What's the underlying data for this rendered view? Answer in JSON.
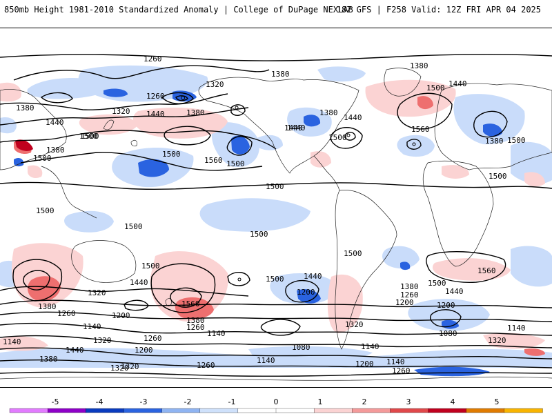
{
  "header": {
    "title": "850mb Height 1981-2010 Standardized Anomaly | College of DuPage NEXLAB",
    "run_info": "18Z GFS | F258 Valid: 12Z FRI APR 04 2025"
  },
  "map": {
    "contour_labels": [
      {
        "id": "c1",
        "text": "1260"
      },
      {
        "id": "c2",
        "text": "1380"
      },
      {
        "id": "c3",
        "text": "1320"
      },
      {
        "id": "c4",
        "text": "1380"
      },
      {
        "id": "c5",
        "text": "1440"
      },
      {
        "id": "c6",
        "text": "1260"
      },
      {
        "id": "c7",
        "text": "1320"
      },
      {
        "id": "c8",
        "text": "1440"
      },
      {
        "id": "c9",
        "text": "1380"
      },
      {
        "id": "c10",
        "text": "1500"
      },
      {
        "id": "c11",
        "text": "1440"
      },
      {
        "id": "c12",
        "text": "1500"
      },
      {
        "id": "c13",
        "text": "1500"
      },
      {
        "id": "c14",
        "text": "1560"
      },
      {
        "id": "c15",
        "text": "1500"
      },
      {
        "id": "c16",
        "text": "1380"
      },
      {
        "id": "c17",
        "text": "1440"
      },
      {
        "id": "c18",
        "text": "1440"
      },
      {
        "id": "c19",
        "text": "1500"
      },
      {
        "id": "c20",
        "text": "1380"
      },
      {
        "id": "c21",
        "text": "1500"
      },
      {
        "id": "c22",
        "text": "1440"
      },
      {
        "id": "c23",
        "text": "1560"
      },
      {
        "id": "c24",
        "text": "1380"
      },
      {
        "id": "c25",
        "text": "1500"
      },
      {
        "id": "c26",
        "text": "1380"
      },
      {
        "id": "c27",
        "text": "1500"
      },
      {
        "id": "c28",
        "text": "1500"
      },
      {
        "id": "c29",
        "text": "1500"
      },
      {
        "id": "c30",
        "text": "1500"
      },
      {
        "id": "c31",
        "text": "1500"
      },
      {
        "id": "c32",
        "text": "1500"
      },
      {
        "id": "c33",
        "text": "1500"
      },
      {
        "id": "c34",
        "text": "1500"
      },
      {
        "id": "c35",
        "text": "1440"
      },
      {
        "id": "c36",
        "text": "1560"
      },
      {
        "id": "c37",
        "text": "1380"
      },
      {
        "id": "c38",
        "text": "1320"
      },
      {
        "id": "c39",
        "text": "1260"
      },
      {
        "id": "c40",
        "text": "1200"
      },
      {
        "id": "c41",
        "text": "1140"
      },
      {
        "id": "c42",
        "text": "1140"
      },
      {
        "id": "c43",
        "text": "1320"
      },
      {
        "id": "c44",
        "text": "1440"
      },
      {
        "id": "c45",
        "text": "1380"
      },
      {
        "id": "c46",
        "text": "1260"
      },
      {
        "id": "c47",
        "text": "1200"
      },
      {
        "id": "c48",
        "text": "1320"
      },
      {
        "id": "c49",
        "text": "1560"
      },
      {
        "id": "c50",
        "text": "1380"
      },
      {
        "id": "c51",
        "text": "1260"
      },
      {
        "id": "c52",
        "text": "1140"
      },
      {
        "id": "c53",
        "text": "1500"
      },
      {
        "id": "c54",
        "text": "1440"
      },
      {
        "id": "c55",
        "text": "1200"
      },
      {
        "id": "c56",
        "text": "1320"
      },
      {
        "id": "c57",
        "text": "1080"
      },
      {
        "id": "c58",
        "text": "1140"
      },
      {
        "id": "c59",
        "text": "1380"
      },
      {
        "id": "c60",
        "text": "1260"
      },
      {
        "id": "c61",
        "text": "1200"
      },
      {
        "id": "c62",
        "text": "1500"
      },
      {
        "id": "c63",
        "text": "1440"
      },
      {
        "id": "c64",
        "text": "1200"
      },
      {
        "id": "c65",
        "text": "1140"
      },
      {
        "id": "c66",
        "text": "1260"
      },
      {
        "id": "c67",
        "text": "1200"
      },
      {
        "id": "c68",
        "text": "1080"
      },
      {
        "id": "c69",
        "text": "1140"
      },
      {
        "id": "c70",
        "text": "1320"
      },
      {
        "id": "c71",
        "text": "1140"
      },
      {
        "id": "c72",
        "text": "1320"
      },
      {
        "id": "c73",
        "text": "1260"
      }
    ]
  },
  "colorbar": {
    "ticks": [
      "-5",
      "-4",
      "-3",
      "-2",
      "-1",
      "0",
      "1",
      "2",
      "3",
      "4",
      "5"
    ],
    "colors": [
      "#e27bff",
      "#8e00c8",
      "#0a3bbf",
      "#2a63e0",
      "#8fb4f2",
      "#cfe1fb",
      "#ffffff",
      "#ffffff",
      "#fbd3d3",
      "#f49a9a",
      "#e0484a",
      "#c0001e",
      "#e07b00",
      "#f8b400"
    ]
  }
}
